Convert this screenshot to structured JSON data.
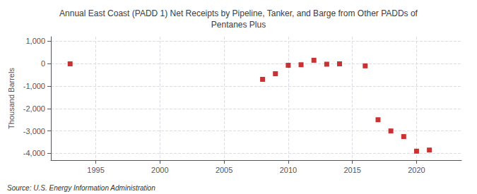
{
  "chart_data": {
    "type": "scatter",
    "title": "Annual East Coast (PADD 1) Net Receipts by Pipeline, Tanker, and Barge from Other PADDs of\nPentanes Plus",
    "ylabel": "Thousand Barrels",
    "source": "Source: U.S. Energy Information Administration",
    "x": [
      1993,
      2008,
      2009,
      2010,
      2011,
      2012,
      2013,
      2014,
      2016,
      2017,
      2018,
      2019,
      2020,
      2021
    ],
    "values": [
      -10,
      -700,
      -450,
      -75,
      -50,
      150,
      -25,
      -10,
      -100,
      -2500,
      -3000,
      -3250,
      -3900,
      -3850
    ],
    "color": "#bb0000",
    "marker": "square",
    "xlim": [
      1991.5,
      2023.5
    ],
    "xticks": [
      1995,
      2000,
      2005,
      2010,
      2015,
      2020
    ],
    "ylim": [
      -4300,
      1200
    ],
    "yticks": [
      {
        "value": 1000,
        "label": "1,000"
      },
      0,
      {
        "value": -1000,
        "label": "-1,000"
      },
      {
        "value": -2000,
        "label": "-2,000"
      },
      {
        "value": -3000,
        "label": "-3,000"
      },
      {
        "value": -4000,
        "label": "-4,000"
      }
    ],
    "grid": true
  }
}
